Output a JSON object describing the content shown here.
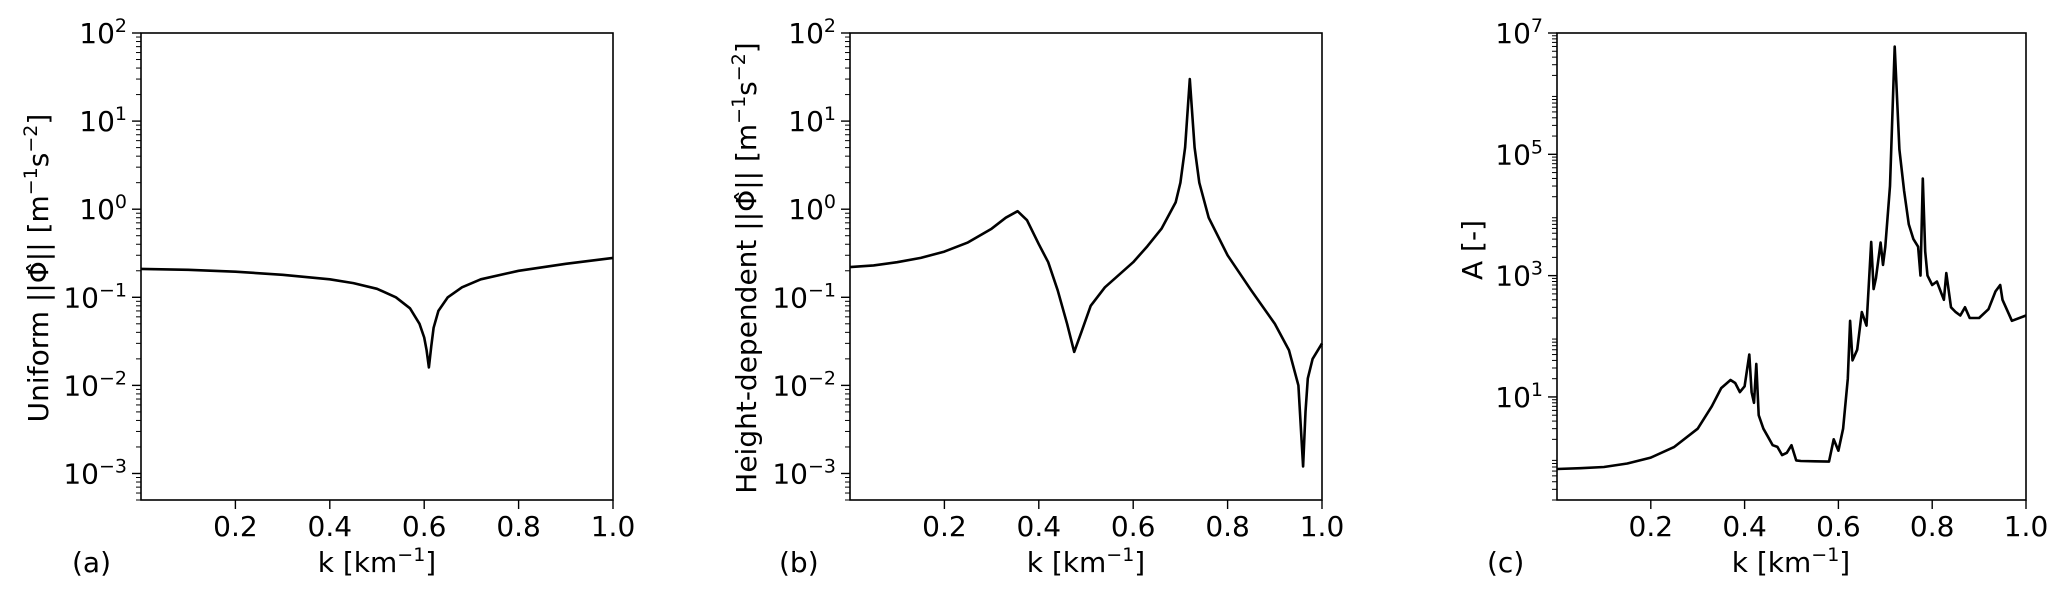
{
  "chart_data": [
    {
      "type": "line",
      "panel_label": "(a)",
      "xlabel": "k [km",
      "xlabel_sup": "−1",
      "xlabel_tail": "]",
      "ylabel": "Uniform ||Φ̂|| [m",
      "ylabel_sup1": "−1",
      "ylabel_mid": "s",
      "ylabel_sup2": "−2",
      "ylabel_tail": "]",
      "xlim": [
        0,
        1
      ],
      "ylim": [
        0.0005,
        100
      ],
      "yscale": "log",
      "xticks": [
        "0.2",
        "0.4",
        "0.6",
        "0.8",
        "1.0"
      ],
      "yticks": [
        {
          "base": "10",
          "exp": "−3"
        },
        {
          "base": "10",
          "exp": "−2"
        },
        {
          "base": "10",
          "exp": "−1"
        },
        {
          "base": "10",
          "exp": "0"
        },
        {
          "base": "10",
          "exp": "1"
        },
        {
          "base": "10",
          "exp": "2"
        }
      ],
      "x": [
        0,
        0.1,
        0.2,
        0.3,
        0.4,
        0.45,
        0.5,
        0.54,
        0.57,
        0.59,
        0.6,
        0.605,
        0.61,
        0.615,
        0.62,
        0.63,
        0.65,
        0.68,
        0.72,
        0.8,
        0.9,
        1.0
      ],
      "y": [
        0.21,
        0.205,
        0.195,
        0.18,
        0.16,
        0.145,
        0.125,
        0.1,
        0.075,
        0.05,
        0.035,
        0.025,
        0.016,
        0.028,
        0.045,
        0.07,
        0.1,
        0.13,
        0.16,
        0.2,
        0.24,
        0.28
      ]
    },
    {
      "type": "line",
      "panel_label": "(b)",
      "xlabel": "k [km",
      "xlabel_sup": "−1",
      "xlabel_tail": "]",
      "ylabel": "Height-dependent ||Φ̂|| [m",
      "ylabel_sup1": "−1",
      "ylabel_mid": "s",
      "ylabel_sup2": "−2",
      "ylabel_tail": "]",
      "xlim": [
        0,
        1
      ],
      "ylim": [
        0.0005,
        100
      ],
      "yscale": "log",
      "xticks": [
        "0.2",
        "0.4",
        "0.6",
        "0.8",
        "1.0"
      ],
      "yticks": [
        {
          "base": "10",
          "exp": "−3"
        },
        {
          "base": "10",
          "exp": "−2"
        },
        {
          "base": "10",
          "exp": "−1"
        },
        {
          "base": "10",
          "exp": "0"
        },
        {
          "base": "10",
          "exp": "1"
        },
        {
          "base": "10",
          "exp": "2"
        }
      ],
      "x": [
        0,
        0.05,
        0.1,
        0.15,
        0.2,
        0.25,
        0.3,
        0.33,
        0.355,
        0.375,
        0.4,
        0.42,
        0.44,
        0.46,
        0.475,
        0.49,
        0.51,
        0.54,
        0.57,
        0.6,
        0.63,
        0.66,
        0.69,
        0.7,
        0.71,
        0.72,
        0.73,
        0.74,
        0.76,
        0.8,
        0.85,
        0.9,
        0.93,
        0.95,
        0.96,
        0.965,
        0.97,
        0.98,
        1.0
      ],
      "y": [
        0.22,
        0.23,
        0.25,
        0.28,
        0.33,
        0.42,
        0.6,
        0.8,
        0.95,
        0.75,
        0.4,
        0.25,
        0.12,
        0.05,
        0.024,
        0.04,
        0.08,
        0.13,
        0.18,
        0.25,
        0.38,
        0.6,
        1.2,
        2,
        5,
        30,
        5,
        2,
        0.8,
        0.3,
        0.12,
        0.05,
        0.025,
        0.01,
        0.0012,
        0.005,
        0.012,
        0.02,
        0.03
      ]
    },
    {
      "type": "line",
      "panel_label": "(c)",
      "xlabel": "k [km",
      "xlabel_sup": "−1",
      "xlabel_tail": "]",
      "ylabel": "A [-]",
      "xlim": [
        0,
        1
      ],
      "ylim": [
        0.2,
        10000000
      ],
      "yscale": "log",
      "xticks": [
        "0.2",
        "0.4",
        "0.6",
        "0.8",
        "1.0"
      ],
      "yticks": [
        {
          "base": "10",
          "exp": "1"
        },
        {
          "base": "10",
          "exp": "3"
        },
        {
          "base": "10",
          "exp": "5"
        },
        {
          "base": "10",
          "exp": "7"
        }
      ],
      "x": [
        0,
        0.05,
        0.1,
        0.15,
        0.2,
        0.25,
        0.3,
        0.33,
        0.35,
        0.37,
        0.38,
        0.39,
        0.4,
        0.41,
        0.415,
        0.42,
        0.425,
        0.43,
        0.44,
        0.45,
        0.46,
        0.47,
        0.48,
        0.49,
        0.5,
        0.51,
        0.52,
        0.55,
        0.58,
        0.59,
        0.6,
        0.61,
        0.62,
        0.625,
        0.63,
        0.64,
        0.65,
        0.66,
        0.67,
        0.675,
        0.68,
        0.69,
        0.695,
        0.7,
        0.71,
        0.72,
        0.73,
        0.74,
        0.75,
        0.76,
        0.77,
        0.775,
        0.78,
        0.785,
        0.79,
        0.8,
        0.81,
        0.82,
        0.825,
        0.83,
        0.84,
        0.85,
        0.86,
        0.87,
        0.88,
        0.9,
        0.92,
        0.935,
        0.945,
        0.95,
        0.97,
        1.0
      ],
      "y": [
        0.65,
        0.67,
        0.7,
        0.8,
        1,
        1.5,
        3,
        7,
        14,
        19,
        17,
        12,
        15,
        50,
        12,
        8,
        35,
        5,
        3,
        2.2,
        1.6,
        1.5,
        1.1,
        1.2,
        1.6,
        0.9,
        0.88,
        0.87,
        0.86,
        2,
        1.3,
        3,
        20,
        180,
        40,
        60,
        250,
        150,
        3600,
        600,
        900,
        3500,
        1500,
        3000,
        30000,
        6000000,
        120000,
        25000,
        7000,
        4000,
        3000,
        1000,
        40000,
        2500,
        1000,
        700,
        800,
        500,
        400,
        1100,
        300,
        250,
        220,
        300,
        200,
        200,
        280,
        550,
        700,
        400,
        180,
        220
      ]
    }
  ]
}
